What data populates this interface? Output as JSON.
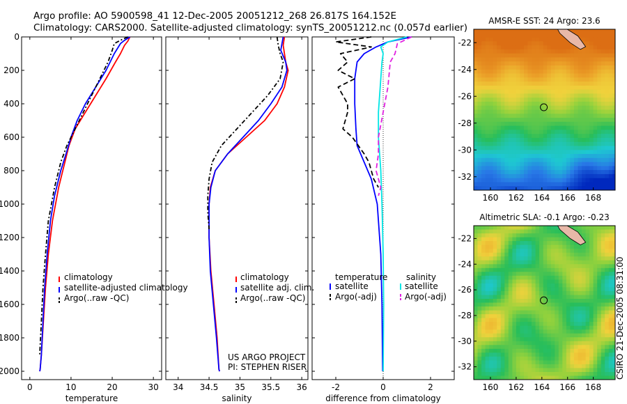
{
  "header": {
    "line1": "Argo profile: AO 5900598_41 12-Dec-2005 20051212_268 26.817S 164.152E",
    "line2": "Climatology: CARS2000. Satellite-adjusted climatology: synTS_20051212.nc (0.057d earlier)"
  },
  "side_label": "CSIRO 21-Dec-2005 08:31:00",
  "credit": {
    "line1": "US ARGO PROJECT",
    "line2": "PI: STEPHEN RISER"
  },
  "colors": {
    "climatology": "#ff0000",
    "satellite_adjusted": "#0000ff",
    "argo": "#000000",
    "salinity_satellite": "#00e5e5",
    "salinity_argo": "#e020e0"
  },
  "chart_data": [
    {
      "type": "line",
      "id": "temperature",
      "xlabel": "temperature",
      "xlim": [
        -2,
        32
      ],
      "ylim": [
        2050,
        0
      ],
      "x_ticks": [
        0,
        10,
        20,
        30
      ],
      "x_tick_labels": [
        "0",
        "10",
        "20",
        "30"
      ],
      "y_ticks": [
        0,
        200,
        400,
        600,
        800,
        1000,
        1200,
        1400,
        1600,
        1800,
        2000
      ],
      "y_tick_labels": [
        "0",
        "200",
        "400",
        "600",
        "800",
        "1000",
        "1200",
        "1400",
        "1600",
        "1800",
        "2000"
      ],
      "legend": [
        "climatology",
        "satellite-adjusted climatology",
        "Argo(..raw -QC)"
      ],
      "series": [
        {
          "name": "climatology",
          "style": "solid",
          "x": [
            24.3,
            23.8,
            23.0,
            22.0,
            20.8,
            18.5,
            16.0,
            13.5,
            11.0,
            9.5,
            8.5,
            7.0,
            5.5,
            4.5,
            3.8,
            3.3,
            2.8,
            2.5,
            2.4
          ],
          "depth": [
            0,
            25,
            50,
            100,
            150,
            250,
            350,
            450,
            550,
            650,
            750,
            900,
            1100,
            1300,
            1500,
            1700,
            1900,
            1990,
            2000
          ]
        },
        {
          "name": "satellite-adjusted climatology",
          "style": "solid",
          "x": [
            24.3,
            23.0,
            22.0,
            20.5,
            18.5,
            16.0,
            13.5,
            11.5,
            10.0,
            8.8,
            7.5,
            6.0,
            5.0,
            4.2,
            3.6,
            3.2,
            2.8,
            2.5,
            2.4
          ],
          "depth": [
            0,
            20,
            40,
            100,
            200,
            300,
            400,
            500,
            600,
            700,
            800,
            950,
            1100,
            1300,
            1500,
            1700,
            1900,
            1990,
            2000
          ]
        },
        {
          "name": "Argo(..raw -QC)",
          "style": "dash-dot",
          "x": [
            23.8,
            22.0,
            20.5,
            20.0,
            19.0,
            17.0,
            15.0,
            13.0,
            11.0,
            9.0,
            7.5,
            6.0,
            4.5,
            3.8,
            3.2,
            2.8,
            2.4
          ],
          "depth": [
            0,
            20,
            40,
            80,
            150,
            250,
            350,
            450,
            550,
            650,
            750,
            900,
            1100,
            1300,
            1500,
            1700,
            1900
          ]
        }
      ]
    },
    {
      "type": "line",
      "id": "salinity",
      "xlabel": "salinity",
      "xlim": [
        33.8,
        36.1
      ],
      "ylim": [
        2050,
        0
      ],
      "x_ticks": [
        34,
        34.5,
        35,
        35.5,
        36
      ],
      "x_tick_labels": [
        "34",
        "34.5",
        "35",
        "35.5",
        "36"
      ],
      "legend": [
        "climatology",
        "satellite adj. clim.",
        "Argo(..raw -QC)"
      ],
      "series": [
        {
          "name": "climatology",
          "style": "solid",
          "x": [
            35.72,
            35.7,
            35.72,
            35.74,
            35.78,
            35.72,
            35.6,
            35.4,
            35.1,
            34.8,
            34.6,
            34.52,
            34.5,
            34.5,
            34.53,
            34.58,
            34.63,
            34.66,
            34.67
          ],
          "depth": [
            0,
            50,
            100,
            150,
            200,
            300,
            400,
            500,
            600,
            700,
            800,
            900,
            1000,
            1200,
            1400,
            1600,
            1800,
            1990,
            2000
          ]
        },
        {
          "name": "satellite adj. clim.",
          "style": "solid",
          "x": [
            35.7,
            35.66,
            35.74,
            35.76,
            35.68,
            35.5,
            35.3,
            35.05,
            34.8,
            34.6,
            34.53,
            34.5,
            34.5,
            34.52,
            34.57,
            34.62,
            34.66,
            34.67
          ],
          "depth": [
            0,
            80,
            150,
            200,
            300,
            400,
            500,
            600,
            700,
            800,
            900,
            1000,
            1200,
            1400,
            1600,
            1800,
            1990,
            2000
          ]
        },
        {
          "name": "Argo(..raw -QC)",
          "style": "dash-dot",
          "x": [
            35.6,
            35.62,
            35.65,
            35.7,
            35.65,
            35.45,
            35.2,
            34.95,
            34.7,
            34.55,
            34.5,
            34.48,
            34.48,
            34.5
          ],
          "depth": [
            0,
            50,
            100,
            150,
            250,
            350,
            450,
            550,
            650,
            750,
            850,
            950,
            1050,
            1150
          ]
        }
      ]
    },
    {
      "type": "line",
      "id": "difference",
      "xlabel": "difference from climatology",
      "xlim": [
        -3,
        3
      ],
      "ylim": [
        2050,
        0
      ],
      "x_ticks": [
        -2,
        0,
        2
      ],
      "x_tick_labels": [
        "-2",
        "0",
        "2"
      ],
      "legend_titles": [
        "temperature",
        "salinity"
      ],
      "legend": [
        "satellite",
        "Argo(-adj)",
        "satellite",
        "Argo(-adj)"
      ],
      "series": [
        {
          "name": "temperature satellite",
          "style": "solid",
          "x": [
            1.2,
            0.2,
            -0.3,
            -0.8,
            -1.1,
            -1.2,
            -1.2,
            -1.15,
            -1.1,
            -0.8,
            -0.5,
            -0.25,
            -0.1,
            -0.05,
            -0.03,
            -0.02
          ],
          "depth": [
            0,
            30,
            60,
            100,
            150,
            250,
            400,
            550,
            650,
            750,
            850,
            1000,
            1300,
            1600,
            1900,
            2000
          ]
        },
        {
          "name": "temperature Argo(-adj)",
          "style": "dash",
          "x": [
            -0.5,
            -2.0,
            -0.5,
            -1.8,
            -1.5,
            -1.9,
            -1.2,
            -1.9,
            -1.5,
            -1.5,
            -1.7,
            -1.3,
            -0.8,
            -0.6,
            -0.4,
            -0.2
          ],
          "depth": [
            0,
            30,
            60,
            100,
            150,
            200,
            250,
            300,
            400,
            450,
            550,
            600,
            700,
            750,
            850,
            900
          ]
        },
        {
          "name": "salinity satellite",
          "style": "solid",
          "x": [
            1.0,
            0.2,
            -0.1,
            0.0,
            -0.05,
            -0.1,
            -0.2,
            -0.2,
            -0.1,
            -0.05,
            0.0,
            0.02,
            0.0
          ],
          "depth": [
            0,
            30,
            60,
            100,
            150,
            250,
            450,
            600,
            800,
            1000,
            1300,
            1600,
            2000
          ]
        },
        {
          "name": "salinity Argo(-adj)",
          "style": "dash",
          "x": [
            1.2,
            0.6,
            0.5,
            0.3,
            0.2,
            0.0,
            -0.2,
            -0.2,
            -0.3,
            -0.1,
            -0.2
          ],
          "depth": [
            0,
            40,
            100,
            150,
            300,
            450,
            600,
            700,
            800,
            900,
            950
          ]
        }
      ]
    },
    {
      "type": "heatmap",
      "id": "sst_map",
      "title": "AMSR-E SST: 24  Argo: 23.6",
      "xlim": [
        158.7,
        169.7
      ],
      "ylim": [
        -33.0,
        -21.0
      ],
      "x_ticks": [
        160,
        162,
        164,
        166,
        168
      ],
      "x_tick_labels": [
        "160",
        "162",
        "164",
        "166",
        "168"
      ],
      "y_ticks": [
        -22,
        -24,
        -26,
        -28,
        -30,
        -32
      ],
      "y_tick_labels": [
        "-22",
        "-24",
        "-26",
        "-28",
        "-30",
        "-32"
      ],
      "marker": {
        "lon": 164.15,
        "lat": -26.82
      },
      "land": [
        {
          "lon": [
            165.0,
            165.8,
            166.8,
            167.4,
            167.0,
            166.2,
            165.4,
            165.0
          ],
          "lat": [
            -20.6,
            -20.9,
            -21.5,
            -22.3,
            -22.5,
            -22.0,
            -21.3,
            -20.6
          ]
        }
      ]
    },
    {
      "type": "heatmap",
      "id": "sla_map",
      "title": "Altimetric SLA: -0.1  Argo: -0.23",
      "xlim": [
        158.7,
        169.7
      ],
      "ylim": [
        -33.0,
        -21.0
      ],
      "x_ticks": [
        160,
        162,
        164,
        166,
        168
      ],
      "x_tick_labels": [
        "160",
        "162",
        "164",
        "166",
        "168"
      ],
      "y_ticks": [
        -22,
        -24,
        -26,
        -28,
        -30,
        -32
      ],
      "y_tick_labels": [
        "-22",
        "-24",
        "-26",
        "-28",
        "-30",
        "-32"
      ],
      "marker": {
        "lon": 164.15,
        "lat": -26.82
      },
      "land": [
        {
          "lon": [
            165.0,
            165.8,
            166.8,
            167.4,
            167.0,
            166.2,
            165.4,
            165.0
          ],
          "lat": [
            -20.6,
            -20.9,
            -21.5,
            -22.3,
            -22.5,
            -22.0,
            -21.3,
            -20.6
          ]
        }
      ]
    }
  ]
}
